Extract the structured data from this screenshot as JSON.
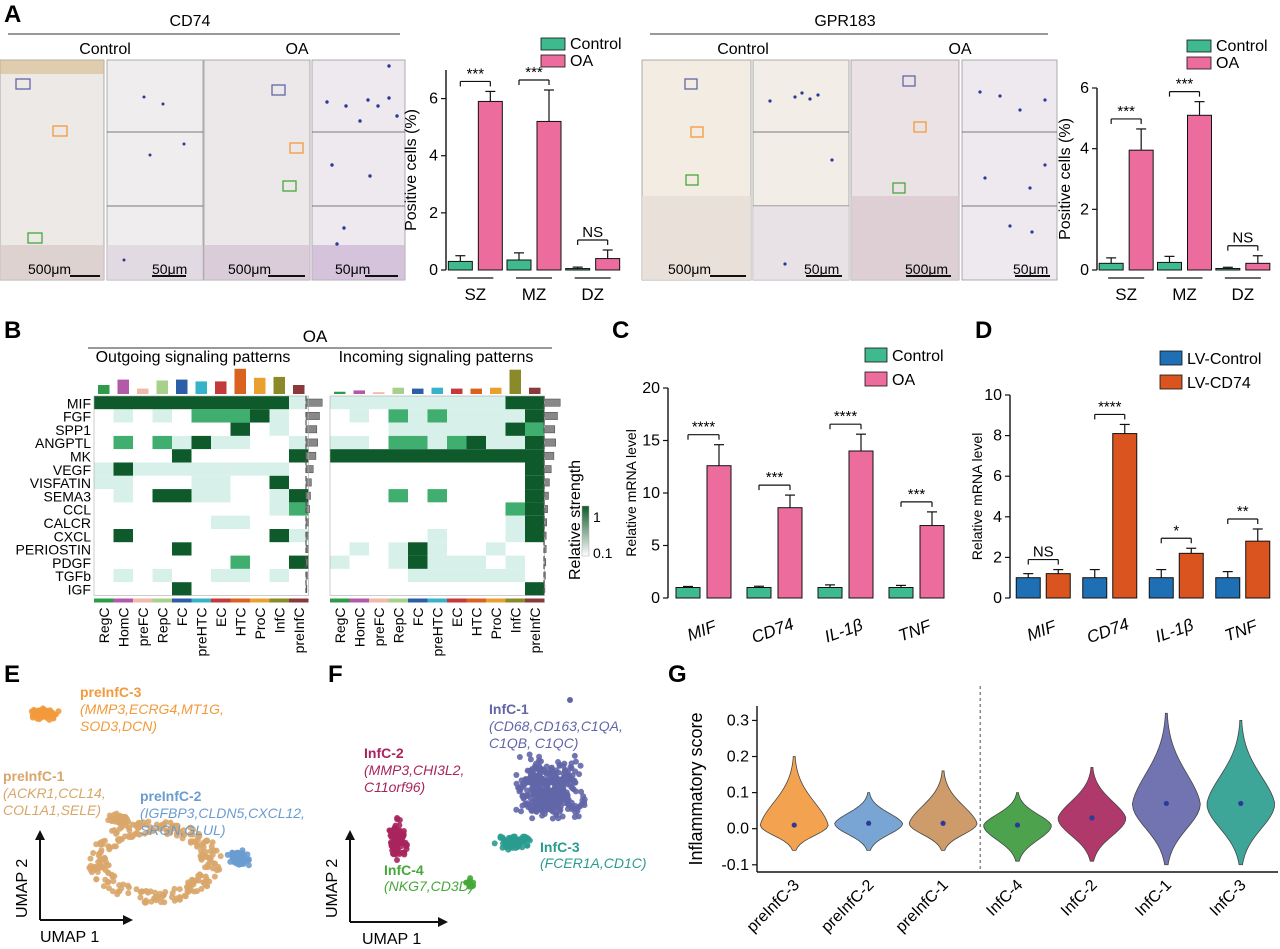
{
  "colors": {
    "control": "#3fba8f",
    "oa": "#ec6d9d",
    "lv_control": "#1f6fb5",
    "lv_cd74": "#d9541e",
    "heat_dark": "#0e5a2b",
    "heat_mid": "#3fae6e",
    "heat_light": "#d8f0ea",
    "pre3": "#f29a3c",
    "pre1": "#d9a66a",
    "pre2": "#6a9ccf",
    "inf1": "#6266a8",
    "inf2": "#a8245d",
    "inf3": "#2a9c8f",
    "inf4": "#45a83a"
  },
  "panel_labels": {
    "A": "A",
    "B": "B",
    "C": "C",
    "D": "D",
    "E": "E",
    "F": "F",
    "G": "G"
  },
  "panel_a": {
    "left_title": "CD74",
    "right_title": "GPR183",
    "control_label": "Control",
    "oa_label": "OA",
    "scale_500": "500μm",
    "scale_50": "50μm"
  },
  "chart_data": [
    {
      "id": "cd74_bar",
      "type": "bar",
      "ylabel": "Positive cells (%)",
      "ylim": [
        0,
        7
      ],
      "yticks": [
        0,
        2,
        4,
        6
      ],
      "categories": [
        "SZ",
        "MZ",
        "DZ"
      ],
      "series": [
        {
          "name": "Control",
          "values": [
            0.3,
            0.35,
            0.05
          ],
          "errors": [
            0.2,
            0.25,
            0.05
          ]
        },
        {
          "name": "OA",
          "values": [
            5.9,
            5.2,
            0.4
          ],
          "errors": [
            0.35,
            1.1,
            0.3
          ]
        }
      ],
      "significance": [
        "***",
        "***",
        "NS"
      ]
    },
    {
      "id": "gpr183_bar",
      "type": "bar",
      "ylabel": "Positive cells (%)",
      "ylim": [
        0,
        6
      ],
      "yticks": [
        0,
        2,
        4,
        6
      ],
      "categories": [
        "SZ",
        "MZ",
        "DZ"
      ],
      "series": [
        {
          "name": "Control",
          "values": [
            0.22,
            0.25,
            0.05
          ],
          "errors": [
            0.18,
            0.2,
            0.04
          ]
        },
        {
          "name": "OA",
          "values": [
            3.95,
            5.1,
            0.22
          ],
          "errors": [
            0.7,
            0.45,
            0.25
          ]
        }
      ],
      "significance": [
        "***",
        "***",
        "NS"
      ]
    },
    {
      "id": "qpcr_oa",
      "type": "bar",
      "ylabel": "Relative mRNA level",
      "ylim": [
        0,
        20
      ],
      "yticks": [
        0,
        5,
        10,
        15,
        20
      ],
      "categories": [
        "MIF",
        "CD74",
        "IL-1β",
        "TNF"
      ],
      "series": [
        {
          "name": "Control",
          "values": [
            1.0,
            1.0,
            1.0,
            1.0
          ],
          "errors": [
            0.1,
            0.12,
            0.25,
            0.2
          ]
        },
        {
          "name": "OA",
          "values": [
            12.6,
            8.6,
            14.0,
            6.9
          ],
          "errors": [
            2.0,
            1.2,
            1.6,
            1.3
          ]
        }
      ],
      "significance": [
        "****",
        "***",
        "****",
        "***"
      ]
    },
    {
      "id": "qpcr_lv",
      "type": "bar",
      "ylabel": "Relative mRNA level",
      "ylim": [
        0,
        10
      ],
      "yticks": [
        0,
        2,
        4,
        6,
        8,
        10
      ],
      "categories": [
        "MIF",
        "CD74",
        "IL-1β",
        "TNF"
      ],
      "series": [
        {
          "name": "LV-Control",
          "values": [
            1.0,
            1.0,
            1.0,
            1.0
          ],
          "errors": [
            0.2,
            0.4,
            0.4,
            0.3
          ]
        },
        {
          "name": "LV-CD74",
          "values": [
            1.2,
            8.1,
            2.2,
            2.8
          ],
          "errors": [
            0.2,
            0.45,
            0.25,
            0.6
          ]
        }
      ],
      "significance": [
        "NS",
        "****",
        "*",
        "**"
      ]
    },
    {
      "id": "heatmap",
      "type": "heatmap",
      "title": "OA",
      "outgoing_title": "Outgoing signaling patterns",
      "incoming_title": "Incoming signaling patterns",
      "legend_title": "Relative strength",
      "legend_max": "1",
      "legend_min": "0.1",
      "rows": [
        "MIF",
        "FGF",
        "SPP1",
        "ANGPTL",
        "MK",
        "VEGF",
        "VISFATIN",
        "SEMA3",
        "CCL",
        "CALCR",
        "CXCL",
        "PERIOSTIN",
        "PDGF",
        "TGFb",
        "IGF"
      ],
      "columns": [
        "RegC",
        "HomC",
        "preFC",
        "RepC",
        "FC",
        "preHTC",
        "EC",
        "HTC",
        "ProC",
        "InfC",
        "preInfC"
      ],
      "column_colors": [
        "#2e9b48",
        "#b25aa8",
        "#f2b9a8",
        "#a8d08d",
        "#2b5ea6",
        "#36b3c9",
        "#c43a3a",
        "#d8621e",
        "#e9a02f",
        "#8a8a2a",
        "#8a3a3a"
      ],
      "outgoing_col_sums": [
        1.0,
        1.6,
        0.6,
        1.5,
        1.6,
        1.4,
        1.4,
        2.8,
        1.8,
        1.9,
        1.0
      ],
      "incoming_col_sums": [
        0.25,
        0.4,
        0.2,
        0.7,
        0.6,
        0.7,
        0.6,
        0.6,
        0.7,
        2.7,
        0.7
      ],
      "outgoing_row_sums": [
        0.9,
        0.75,
        0.6,
        0.65,
        0.55,
        0.4,
        0.3,
        0.25,
        0.2,
        0.15,
        0.12,
        0.12,
        0.1,
        0.08,
        0.05
      ],
      "incoming_row_sums": [
        0.9,
        0.75,
        0.6,
        0.65,
        0.55,
        0.4,
        0.3,
        0.25,
        0.2,
        0.15,
        0.12,
        0.12,
        0.1,
        0.08,
        0.05
      ],
      "outgoing": [
        [
          3,
          3,
          3,
          3,
          3,
          3,
          3,
          3,
          3,
          3,
          1
        ],
        [
          0,
          1,
          0,
          1,
          0,
          2,
          2,
          2,
          3,
          1,
          0
        ],
        [
          0,
          0,
          0,
          0,
          0,
          0,
          0,
          3,
          0,
          1,
          0
        ],
        [
          0,
          2,
          0,
          2,
          1,
          3,
          1,
          1,
          0,
          0,
          1
        ],
        [
          0,
          0,
          0,
          0,
          3,
          0,
          0,
          0,
          0,
          0,
          3
        ],
        [
          1,
          3,
          1,
          1,
          1,
          1,
          1,
          1,
          1,
          1,
          0
        ],
        [
          1,
          1,
          0,
          0,
          0,
          1,
          1,
          0,
          0,
          3,
          0
        ],
        [
          0,
          1,
          0,
          3,
          3,
          1,
          1,
          0,
          0,
          1,
          3
        ],
        [
          0,
          0,
          0,
          0,
          0,
          0,
          0,
          0,
          0,
          1,
          2
        ],
        [
          0,
          0,
          0,
          0,
          0,
          0,
          1,
          1,
          0,
          0,
          0
        ],
        [
          0,
          3,
          0,
          0,
          0,
          0,
          0,
          0,
          0,
          3,
          1
        ],
        [
          0,
          0,
          0,
          0,
          3,
          0,
          0,
          0,
          0,
          0,
          0
        ],
        [
          0,
          0,
          0,
          0,
          0,
          0,
          0,
          2,
          0,
          0,
          3
        ],
        [
          0,
          1,
          0,
          1,
          0,
          0,
          1,
          1,
          0,
          1,
          0
        ],
        [
          0,
          0,
          0,
          0,
          3,
          0,
          0,
          0,
          0,
          0,
          0
        ]
      ],
      "incoming": [
        [
          1,
          1,
          1,
          1,
          1,
          1,
          1,
          1,
          1,
          3,
          3
        ],
        [
          0,
          1,
          0,
          2,
          1,
          2,
          1,
          1,
          1,
          1,
          3
        ],
        [
          0,
          0,
          0,
          1,
          1,
          1,
          1,
          1,
          1,
          3,
          2
        ],
        [
          1,
          1,
          0,
          2,
          2,
          1,
          2,
          3,
          1,
          1,
          3
        ],
        [
          3,
          3,
          3,
          3,
          3,
          3,
          3,
          3,
          3,
          3,
          3
        ],
        [
          0,
          0,
          0,
          0,
          0,
          0,
          0,
          0,
          0,
          0,
          3
        ],
        [
          0,
          0,
          0,
          0,
          0,
          0,
          0,
          0,
          0,
          0,
          3
        ],
        [
          0,
          0,
          0,
          2,
          0,
          2,
          0,
          0,
          0,
          0,
          3
        ],
        [
          0,
          0,
          0,
          0,
          0,
          0,
          0,
          0,
          0,
          2,
          3
        ],
        [
          0,
          0,
          0,
          0,
          0,
          0,
          0,
          0,
          0,
          1,
          3
        ],
        [
          0,
          0,
          0,
          0,
          0,
          1,
          0,
          0,
          0,
          1,
          3
        ],
        [
          0,
          1,
          0,
          1,
          3,
          1,
          0,
          0,
          1,
          0,
          0
        ],
        [
          1,
          0,
          0,
          1,
          3,
          1,
          1,
          1,
          0,
          1,
          0
        ],
        [
          0,
          0,
          0,
          0,
          1,
          1,
          1,
          1,
          1,
          1,
          0
        ],
        [
          0,
          0,
          0,
          0,
          0,
          0,
          0,
          0,
          0,
          0,
          3
        ]
      ]
    },
    {
      "id": "violin",
      "type": "violin",
      "ylabel": "Inflammatory score",
      "ylim": [
        -0.12,
        0.34
      ],
      "yticks": [
        -0.1,
        0.0,
        0.1,
        0.2,
        0.3
      ],
      "categories": [
        "preInfC-3",
        "preInfC-2",
        "preInfC-1",
        "InfC-4",
        "InfC-2",
        "InfC-1",
        "InfC-3"
      ],
      "medians": [
        0.01,
        0.015,
        0.015,
        0.01,
        0.03,
        0.07,
        0.07
      ],
      "mins": [
        -0.06,
        -0.06,
        -0.06,
        -0.09,
        -0.09,
        -0.1,
        -0.1
      ],
      "maxs": [
        0.2,
        0.1,
        0.16,
        0.1,
        0.17,
        0.32,
        0.3
      ],
      "colors": [
        "#f29a3c",
        "#6a9ccf",
        "#c9925a",
        "#3a9a3a",
        "#a8245d",
        "#6266a8",
        "#2a9c8f"
      ]
    }
  ],
  "panel_e": {
    "xlabel": "UMAP 1",
    "ylabel": "UMAP 2",
    "clusters": [
      {
        "name": "preInfC-3",
        "markers": [
          "(MMP3,ECRG4,MT1G,",
          "SOD3,DCN)"
        ]
      },
      {
        "name": "preInfC-1",
        "markers": [
          "(ACKR1,CCL14,",
          "COL1A1,SELE)"
        ]
      },
      {
        "name": "preInfC-2",
        "markers": [
          "(IGFBP3,CLDN5,CXCL12,",
          "SRGN,GLUL)"
        ]
      }
    ]
  },
  "panel_f": {
    "xlabel": "UMAP 1",
    "ylabel": "UMAP 2",
    "clusters": [
      {
        "name": "InfC-1",
        "markers": [
          "(CD68,CD163,C1QA,",
          "C1QB, C1QC)"
        ]
      },
      {
        "name": "InfC-2",
        "markers": [
          "(MMP3,CHI3L2,",
          "C11orf96)"
        ]
      },
      {
        "name": "InfC-3",
        "markers": [
          "(FCER1A,CD1C)"
        ]
      },
      {
        "name": "InfC-4",
        "markers": [
          "(NKG7,CD3D)"
        ]
      }
    ]
  }
}
